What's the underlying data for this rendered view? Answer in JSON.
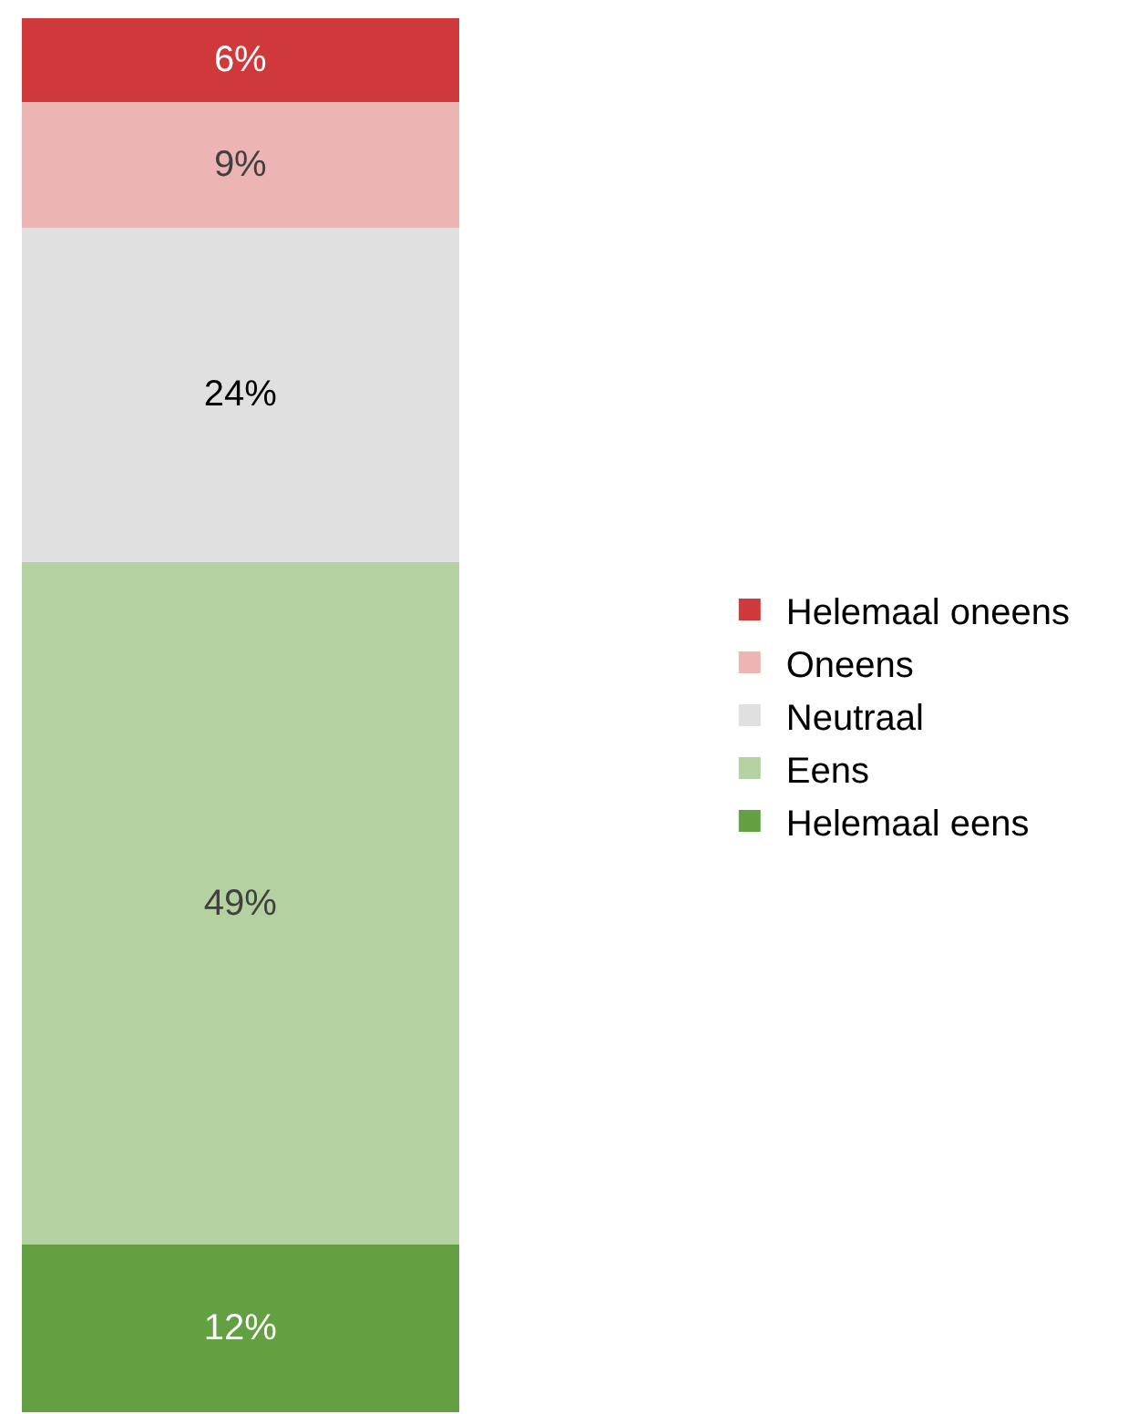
{
  "chart_data": {
    "type": "bar",
    "stacked": true,
    "categories": [
      null
    ],
    "legend": "right",
    "series": [
      {
        "name": "Helemaal eens",
        "color": "#62a042",
        "values": [
          12
        ],
        "value_labels": [
          "12%"
        ]
      },
      {
        "name": "Eens",
        "color": "#b3d1a1",
        "values": [
          49
        ],
        "value_labels": [
          "49%"
        ]
      },
      {
        "name": "Neutraal",
        "color": "#dfe0df",
        "values": [
          24
        ],
        "value_labels": [
          "24%"
        ]
      },
      {
        "name": "Oneens",
        "color": "#ecb4b2",
        "values": [
          9
        ],
        "value_labels": [
          "9%"
        ]
      },
      {
        "name": "Helemaal oneens",
        "color": "#d0393b",
        "values": [
          6
        ],
        "value_labels": [
          "6%"
        ]
      }
    ]
  }
}
